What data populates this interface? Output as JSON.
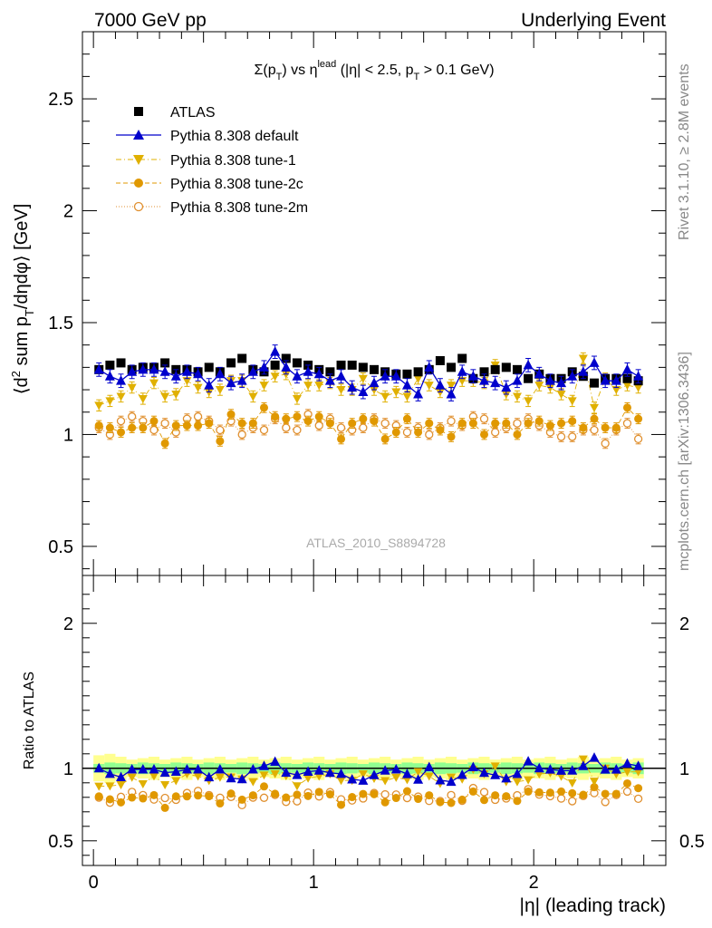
{
  "header": {
    "left": "7000 GeV pp",
    "right": "Underlying Event"
  },
  "side_text": {
    "top": "Rivet 3.1.10, ≥ 2.8M events",
    "bottom": "mcplots.cern.ch [arXiv:1306.3436]"
  },
  "analysis_id": "ATLAS_2010_S8894728",
  "colors": {
    "atlas": "#000000",
    "default": "#0000cc",
    "tune1": "#e0b000",
    "tune2c": "#e09800",
    "tune2m": "#e09030",
    "band_inner": "#90ff90",
    "band_outer": "#ffff90"
  },
  "chart_data": [
    {
      "type": "scatter",
      "title_parts": {
        "sigma": "Σ(p",
        "sub_t": "T",
        "mid": ") vs η",
        "sup_lead": "lead",
        "tail1": " (|η| < 2.5, p",
        "sub_t2": "T",
        "tail2": " > 0.1 GeV)"
      },
      "ylabel_parts": {
        "a": "⟨d",
        "sup2": "2",
        "b": " sum p",
        "subT": "T",
        "c": "/dηdφ⟩ [GeV]"
      },
      "ylim": [
        0.37,
        2.8
      ],
      "yticks": [
        "0.5",
        "1",
        "1.5",
        "2",
        "2.5"
      ],
      "xlim": [
        -0.05,
        2.6
      ],
      "x": [
        0.025,
        0.075,
        0.125,
        0.175,
        0.225,
        0.275,
        0.325,
        0.375,
        0.425,
        0.475,
        0.525,
        0.575,
        0.625,
        0.675,
        0.725,
        0.775,
        0.825,
        0.875,
        0.925,
        0.975,
        1.025,
        1.075,
        1.125,
        1.175,
        1.225,
        1.275,
        1.325,
        1.375,
        1.425,
        1.475,
        1.525,
        1.575,
        1.625,
        1.675,
        1.725,
        1.775,
        1.825,
        1.875,
        1.925,
        1.975,
        2.025,
        2.075,
        2.125,
        2.175,
        2.225,
        2.275,
        2.325,
        2.375,
        2.425,
        2.475
      ],
      "series": [
        {
          "name": "ATLAS",
          "key": "atlas",
          "marker": "square",
          "values": [
            1.29,
            1.31,
            1.32,
            1.29,
            1.3,
            1.3,
            1.32,
            1.29,
            1.29,
            1.28,
            1.3,
            1.28,
            1.32,
            1.34,
            1.29,
            1.28,
            1.31,
            1.34,
            1.32,
            1.31,
            1.29,
            1.28,
            1.31,
            1.31,
            1.3,
            1.29,
            1.28,
            1.27,
            1.27,
            1.28,
            1.29,
            1.33,
            1.3,
            1.34,
            1.25,
            1.28,
            1.29,
            1.3,
            1.29,
            1.25,
            1.27,
            1.25,
            1.25,
            1.28,
            1.26,
            1.23,
            1.25,
            1.25,
            1.25,
            1.24
          ]
        },
        {
          "name": "Pythia 8.308 default",
          "key": "default",
          "marker": "triangle-up",
          "values": [
            1.29,
            1.26,
            1.24,
            1.28,
            1.29,
            1.29,
            1.28,
            1.26,
            1.28,
            1.27,
            1.22,
            1.27,
            1.23,
            1.24,
            1.28,
            1.3,
            1.37,
            1.3,
            1.26,
            1.28,
            1.27,
            1.24,
            1.26,
            1.21,
            1.19,
            1.23,
            1.26,
            1.26,
            1.22,
            1.18,
            1.3,
            1.22,
            1.18,
            1.28,
            1.26,
            1.24,
            1.23,
            1.21,
            1.24,
            1.31,
            1.27,
            1.24,
            1.23,
            1.26,
            1.28,
            1.32,
            1.24,
            1.24,
            1.29,
            1.26
          ]
        },
        {
          "name": "Pythia 8.308 tune-1",
          "key": "tune1",
          "marker": "triangle-down",
          "values": [
            1.13,
            1.15,
            1.17,
            1.21,
            1.16,
            1.23,
            1.17,
            1.18,
            1.24,
            1.21,
            1.19,
            1.2,
            1.24,
            1.24,
            1.17,
            1.22,
            1.26,
            1.27,
            1.16,
            1.22,
            1.22,
            1.23,
            1.2,
            1.2,
            1.25,
            1.2,
            1.17,
            1.19,
            1.17,
            1.25,
            1.22,
            1.19,
            1.22,
            1.24,
            1.24,
            1.23,
            1.31,
            1.18,
            1.17,
            1.15,
            1.22,
            1.21,
            1.18,
            1.15,
            1.34,
            1.12,
            1.25,
            1.2,
            1.22,
            1.21
          ]
        },
        {
          "name": "Pythia 8.308 tune-2c",
          "key": "tune2c",
          "marker": "circle",
          "values": [
            1.04,
            1.03,
            1.01,
            1.03,
            1.03,
            1.06,
            0.96,
            1.04,
            1.04,
            1.04,
            1.05,
            0.97,
            1.09,
            1.05,
            1.05,
            1.12,
            1.08,
            1.07,
            1.08,
            1.06,
            1.08,
            1.05,
            0.98,
            1.05,
            1.07,
            1.06,
            0.98,
            1.01,
            1.07,
            1.01,
            1.05,
            1.02,
            0.99,
            1.05,
            1.05,
            1.0,
            1.05,
            1.05,
            1.0,
            1.05,
            1.06,
            1.04,
            1.05,
            1.06,
            1.03,
            1.07,
            1.03,
            1.03,
            1.12,
            1.07
          ]
        },
        {
          "name": "Pythia 8.308 tune-2m",
          "key": "tune2m",
          "marker": "open-circle",
          "values": [
            1.03,
            1.0,
            1.06,
            1.08,
            1.06,
            1.02,
            1.05,
            1.01,
            1.07,
            1.08,
            1.06,
            1.02,
            1.06,
            1.0,
            1.03,
            1.02,
            1.07,
            1.03,
            1.02,
            1.09,
            1.04,
            1.07,
            1.03,
            1.02,
            1.03,
            1.07,
            1.05,
            1.04,
            1.01,
            1.03,
            1.0,
            1.03,
            1.06,
            1.04,
            1.08,
            1.07,
            1.01,
            1.03,
            1.05,
            1.07,
            1.04,
            1.01,
            0.99,
            0.99,
            1.02,
            1.02,
            0.96,
            1.02,
            1.05,
            0.98
          ]
        }
      ]
    },
    {
      "type": "scatter",
      "ylabel": "Ratio to ATLAS",
      "xlabel": "|η| (leading track)",
      "ylim": [
        0.33,
        2.33
      ],
      "yticks": [
        "0.5",
        "1",
        "2"
      ],
      "xticks": [
        "0",
        "1",
        "2"
      ],
      "xlim": [
        -0.05,
        2.6
      ],
      "band_inner_halfwidth": 0.03,
      "band_outer_halfwidth": 0.06,
      "ratio_source": "derived from top panel: model / ATLAS"
    }
  ]
}
